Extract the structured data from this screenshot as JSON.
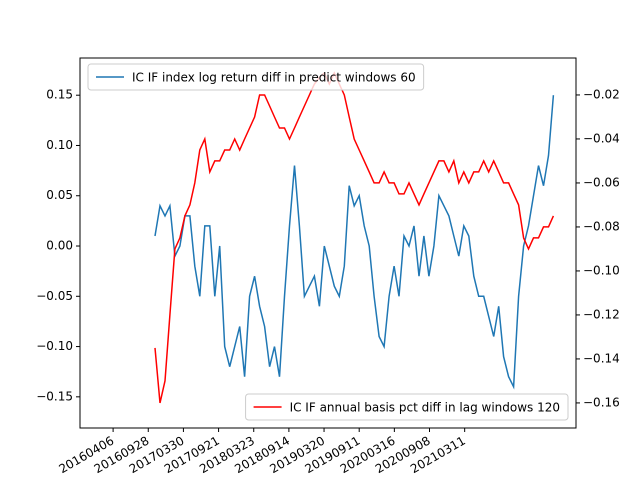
{
  "chart_data": {
    "type": "line",
    "x": [
      143,
      160,
      177,
      194,
      211,
      228,
      245,
      262,
      279,
      296,
      313,
      330,
      347,
      364,
      381,
      398,
      415,
      432,
      449,
      466,
      483,
      500,
      517,
      534,
      551,
      568,
      585,
      602,
      619,
      636,
      653,
      670,
      687,
      704,
      721,
      738,
      755,
      772,
      789,
      806,
      823,
      840,
      857,
      874,
      891,
      908,
      925,
      942,
      959,
      976,
      993,
      1010,
      1027,
      1044,
      1061,
      1078,
      1095,
      1112,
      1129,
      1146,
      1163,
      1180,
      1197,
      1214,
      1231,
      1248,
      1265,
      1282,
      1299,
      1316,
      1333,
      1350,
      1367,
      1384,
      1401,
      1418,
      1435,
      1452,
      1469,
      1486,
      1503
    ],
    "xlim": [
      -113,
      1580
    ],
    "xticks": [
      {
        "value": 0,
        "label": "20160406"
      },
      {
        "value": 120,
        "label": "20160928"
      },
      {
        "value": 240,
        "label": "20170330"
      },
      {
        "value": 360,
        "label": "20170921"
      },
      {
        "value": 480,
        "label": "20180323"
      },
      {
        "value": 600,
        "label": "20180914"
      },
      {
        "value": 720,
        "label": "20190320"
      },
      {
        "value": 840,
        "label": "20190911"
      },
      {
        "value": 960,
        "label": "20200316"
      },
      {
        "value": 1080,
        "label": "20200908"
      },
      {
        "value": 1200,
        "label": "20210311"
      }
    ],
    "ylim": [
      -0.181,
      0.187
    ],
    "yticks": [
      {
        "value": -0.15,
        "label": "−0.15"
      },
      {
        "value": -0.1,
        "label": "−0.10"
      },
      {
        "value": -0.05,
        "label": "−0.05"
      },
      {
        "value": 0,
        "label": "0.00"
      },
      {
        "value": 0.05,
        "label": "0.05"
      },
      {
        "value": 0.1,
        "label": "0.10"
      },
      {
        "value": 0.15,
        "label": "0.15"
      }
    ],
    "y2lim": [
      -0.1714,
      -0.0032
    ],
    "y2ticks": [
      {
        "value": -0.16,
        "label": "−0.16"
      },
      {
        "value": -0.14,
        "label": "−0.14"
      },
      {
        "value": -0.12,
        "label": "−0.12"
      },
      {
        "value": -0.1,
        "label": "−0.10"
      },
      {
        "value": -0.08,
        "label": "−0.08"
      },
      {
        "value": -0.06,
        "label": "−0.06"
      },
      {
        "value": -0.04,
        "label": "−0.04"
      },
      {
        "value": -0.02,
        "label": "−0.02"
      }
    ],
    "series": [
      {
        "name": "IC IF index log return diff in predict windows 60",
        "color": "#1f77b4",
        "legend_loc": "upper left",
        "values": [
          0.01,
          0.04,
          0.03,
          0.04,
          -0.01,
          0.0,
          0.03,
          0.03,
          -0.02,
          -0.05,
          0.02,
          0.02,
          -0.05,
          0.0,
          -0.1,
          -0.12,
          -0.1,
          -0.08,
          -0.13,
          -0.05,
          -0.03,
          -0.06,
          -0.08,
          -0.12,
          -0.1,
          -0.13,
          -0.05,
          0.02,
          0.08,
          0.02,
          -0.05,
          -0.04,
          -0.03,
          -0.06,
          0.0,
          -0.02,
          -0.04,
          -0.05,
          -0.02,
          0.06,
          0.04,
          0.05,
          0.02,
          0.0,
          -0.05,
          -0.09,
          -0.1,
          -0.05,
          -0.02,
          -0.05,
          0.01,
          0.0,
          0.02,
          -0.03,
          0.01,
          -0.03,
          0.0,
          0.05,
          0.04,
          0.03,
          0.01,
          -0.01,
          0.02,
          0.01,
          -0.03,
          -0.05,
          -0.05,
          -0.07,
          -0.09,
          -0.06,
          -0.11,
          -0.13,
          -0.14,
          -0.05,
          0.0,
          0.02,
          0.05,
          0.08,
          0.06,
          0.09,
          0.15
        ]
      },
      {
        "name": "IC IF annual basis pct diff in lag windows 120",
        "color": "#ff0000",
        "axis": "y2",
        "legend_loc": "lower right",
        "values": [
          -0.135,
          -0.16,
          -0.15,
          -0.12,
          -0.09,
          -0.085,
          -0.075,
          -0.07,
          -0.06,
          -0.045,
          -0.04,
          -0.055,
          -0.05,
          -0.05,
          -0.045,
          -0.045,
          -0.04,
          -0.045,
          -0.04,
          -0.035,
          -0.03,
          -0.02,
          -0.02,
          -0.025,
          -0.03,
          -0.035,
          -0.035,
          -0.04,
          -0.035,
          -0.03,
          -0.025,
          -0.02,
          -0.015,
          -0.012,
          -0.01,
          -0.015,
          -0.01,
          -0.015,
          -0.02,
          -0.03,
          -0.04,
          -0.045,
          -0.05,
          -0.055,
          -0.06,
          -0.06,
          -0.055,
          -0.06,
          -0.06,
          -0.065,
          -0.065,
          -0.06,
          -0.065,
          -0.07,
          -0.065,
          -0.06,
          -0.055,
          -0.05,
          -0.05,
          -0.055,
          -0.05,
          -0.06,
          -0.055,
          -0.06,
          -0.055,
          -0.055,
          -0.05,
          -0.055,
          -0.05,
          -0.055,
          -0.06,
          -0.06,
          -0.065,
          -0.07,
          -0.085,
          -0.09,
          -0.085,
          -0.085,
          -0.08,
          -0.08,
          -0.075
        ]
      }
    ]
  }
}
